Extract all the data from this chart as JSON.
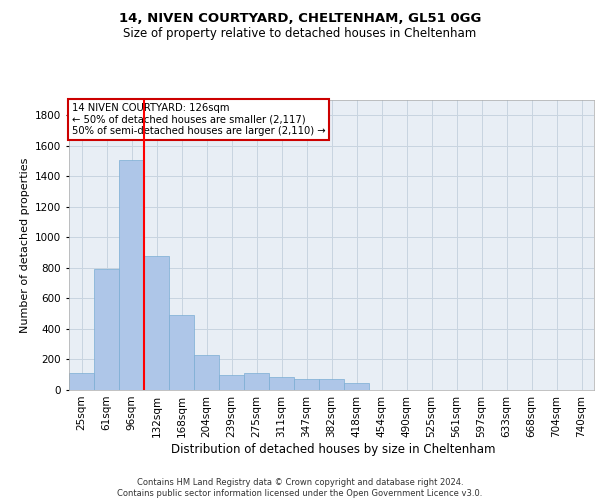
{
  "title1": "14, NIVEN COURTYARD, CHELTENHAM, GL51 0GG",
  "title2": "Size of property relative to detached houses in Cheltenham",
  "xlabel": "Distribution of detached houses by size in Cheltenham",
  "ylabel": "Number of detached properties",
  "footer": "Contains HM Land Registry data © Crown copyright and database right 2024.\nContains public sector information licensed under the Open Government Licence v3.0.",
  "bar_labels": [
    "25sqm",
    "61sqm",
    "96sqm",
    "132sqm",
    "168sqm",
    "204sqm",
    "239sqm",
    "275sqm",
    "311sqm",
    "347sqm",
    "382sqm",
    "418sqm",
    "454sqm",
    "490sqm",
    "525sqm",
    "561sqm",
    "597sqm",
    "633sqm",
    "668sqm",
    "704sqm",
    "740sqm"
  ],
  "bar_values": [
    110,
    790,
    1510,
    880,
    490,
    230,
    100,
    110,
    85,
    75,
    70,
    45,
    0,
    0,
    0,
    0,
    0,
    0,
    0,
    0,
    0
  ],
  "bar_color": "#aec6e8",
  "bar_edgecolor": "#7aadd4",
  "property_line_x": 2.5,
  "annotation_title": "14 NIVEN COURTYARD: 126sqm",
  "annotation_line1": "← 50% of detached houses are smaller (2,117)",
  "annotation_line2": "50% of semi-detached houses are larger (2,110) →",
  "annotation_box_edgecolor": "#cc0000",
  "ylim": [
    0,
    1900
  ],
  "yticks": [
    0,
    200,
    400,
    600,
    800,
    1000,
    1200,
    1400,
    1600,
    1800
  ],
  "grid_color": "#c8d4e0",
  "bg_color": "#e8eef5",
  "title1_fontsize": 9.5,
  "title2_fontsize": 8.5,
  "ylabel_fontsize": 8,
  "xlabel_fontsize": 8.5,
  "tick_fontsize": 7.5,
  "footer_fontsize": 6
}
